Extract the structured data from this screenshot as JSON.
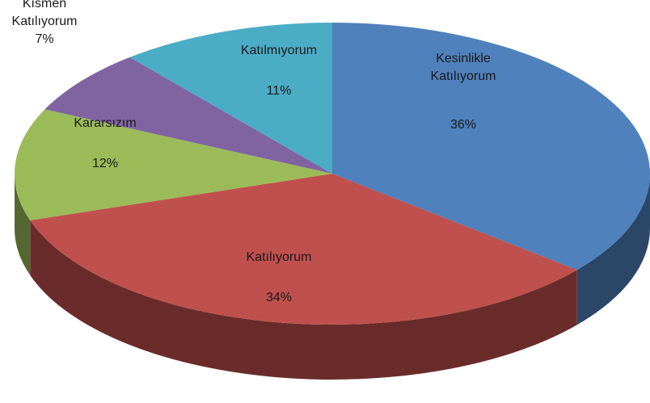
{
  "chart_data": {
    "type": "pie3d",
    "categories": [
      "Kesinlikle Katılıyorum",
      "Katılıyorum",
      "Kararsızım",
      "Kısmen Katılıyorum",
      "Katılmıyorum"
    ],
    "values": [
      36,
      34,
      12,
      7,
      11
    ],
    "value_labels": [
      "36%",
      "34%",
      "12%",
      "7%",
      "11%"
    ],
    "colors": [
      "#4f81bd",
      "#c0504d",
      "#9bbb59",
      "#8064a2",
      "#4bacc6"
    ]
  }
}
